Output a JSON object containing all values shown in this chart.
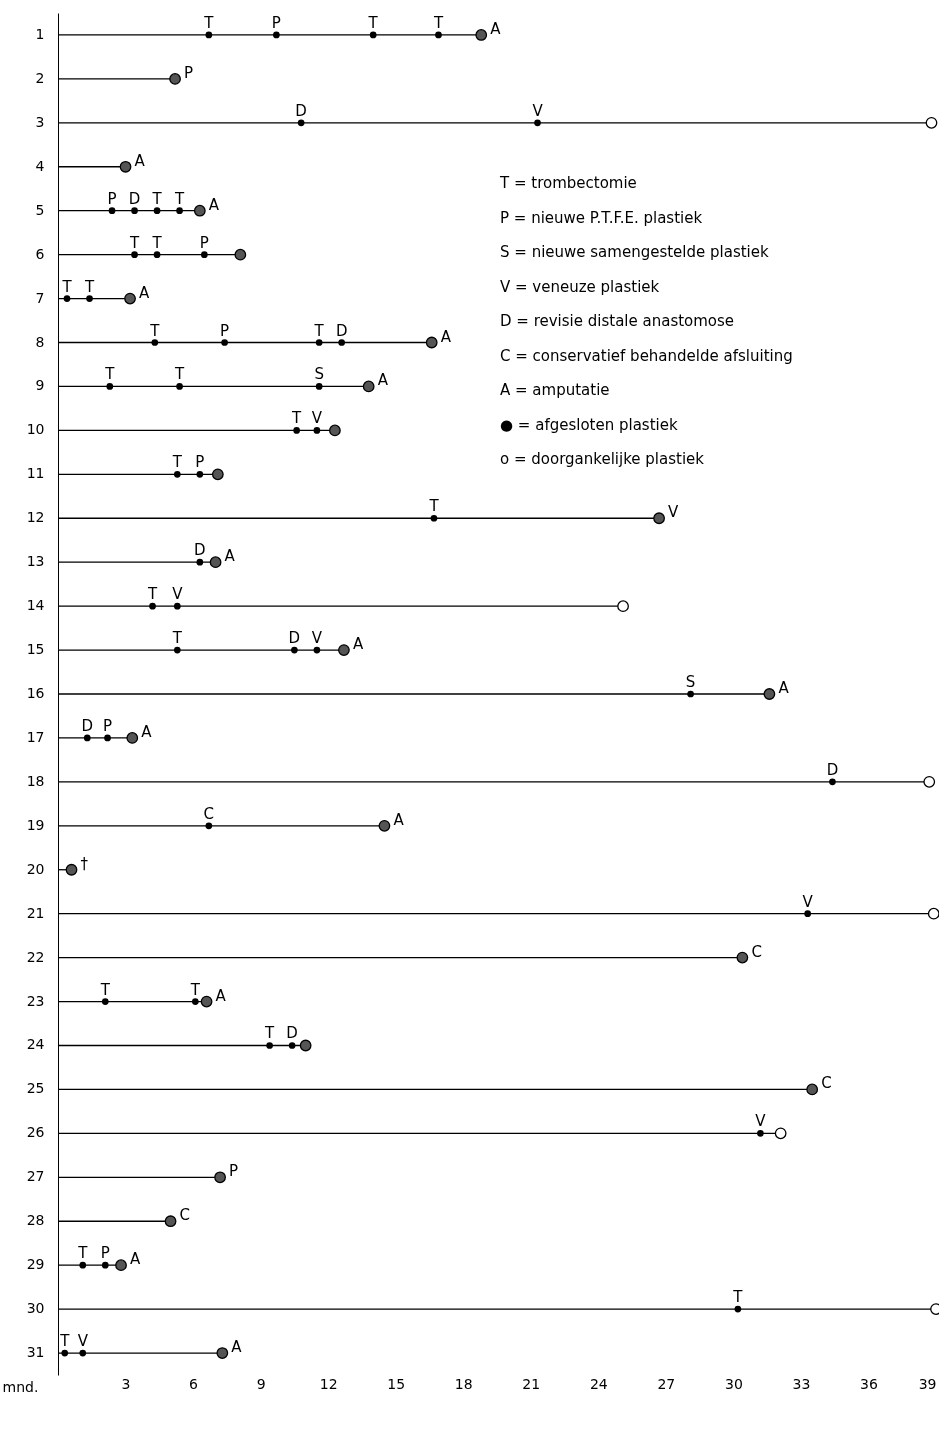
{
  "chart_data": {
    "type": "lollipop",
    "orientation": "horizontal",
    "xlabel": "mnd.",
    "grid": false,
    "marker": "circle",
    "categories": [
      "1",
      "2",
      "3",
      "4",
      "5",
      "6",
      "7",
      "8",
      "9",
      "10",
      "11",
      "12",
      "13",
      "14",
      "15",
      "16",
      "17",
      "18",
      "19",
      "20",
      "21",
      "22",
      "23",
      "24",
      "25",
      "26",
      "27",
      "28",
      "29",
      "30",
      "31"
    ],
    "xlim": [
      0,
      39
    ],
    "xticks": [
      3,
      6,
      9,
      12,
      15,
      18,
      21,
      24,
      27,
      30,
      33,
      36,
      39
    ],
    "annotations": [
      "T = trombectomie",
      "P = nieuwe P.T.F.E. plastiek",
      "S = nieuwe samengestelde plastiek",
      "V = veneuze plastiek",
      "D = revisie distale anastomose",
      "C = conservatief behandelde afsluiting",
      "A = amputatie",
      "● = afgesloten plastiek",
      "o = doorgankelijke plastiek"
    ],
    "series": [
      {
        "type": "lollipop",
        "color": "#000000",
        "values": [
          18.8,
          5.2,
          38.8,
          3.0,
          6.3,
          8.1,
          3.2,
          16.6,
          13.8,
          12.3,
          7.1,
          26.7,
          7.0,
          25.1,
          12.7,
          31.6,
          3.3,
          38.7,
          14.5,
          0.6,
          38.9,
          30.4,
          6.6,
          11.0,
          33.5,
          32.1,
          7.2,
          5.0,
          2.8,
          39.0,
          7.3
        ],
        "colors": [
          "#555555",
          "#555555",
          "#ffffff",
          "#555555",
          "#555555",
          "#555555",
          "#555555",
          "#555555",
          "#555555",
          "#555555",
          "#555555",
          "#555555",
          "#555555",
          "#ffffff",
          "#555555",
          "#555555",
          "#555555",
          "#ffffff",
          "#555555",
          "#555555",
          "#ffffff",
          "#555555",
          "#555555",
          "#555555",
          "#555555",
          "#ffffff",
          "#555555",
          "#555555",
          "#555555",
          "#ffffff",
          "#555555"
        ],
        "value_labels": [
          "A",
          "P",
          null,
          "A",
          "A",
          null,
          "A",
          "A",
          "A",
          null,
          null,
          "V",
          "A",
          null,
          "A",
          "A",
          "A",
          null,
          "A",
          "†",
          null,
          "C",
          "A",
          null,
          "C",
          null,
          "P",
          "C",
          "A",
          null,
          "A"
        ]
      },
      {
        "type": "scatter",
        "color": "#000000",
        "x": [
          "1",
          "1",
          "1",
          "1",
          "3",
          "3",
          "5",
          "5",
          "5",
          "5",
          "6",
          "6",
          "6",
          "7",
          "7",
          "8",
          "8",
          "8",
          "8",
          "9",
          "9",
          "9",
          "10",
          "10",
          "11",
          "11",
          "12",
          "13",
          "14",
          "14",
          "15",
          "15",
          "15",
          "16",
          "17",
          "17",
          "18",
          "19",
          "21",
          "23",
          "23",
          "24",
          "24",
          "26",
          "29",
          "29",
          "30",
          "31",
          "31"
        ],
        "values": [
          6.7,
          9.7,
          14.0,
          16.9,
          10.8,
          21.3,
          2.4,
          3.4,
          4.4,
          5.4,
          3.4,
          4.4,
          6.5,
          0.4,
          1.4,
          4.3,
          7.4,
          11.6,
          12.6,
          2.3,
          5.4,
          11.6,
          10.6,
          11.5,
          5.3,
          6.3,
          16.7,
          6.3,
          4.2,
          5.3,
          5.3,
          10.5,
          11.5,
          28.1,
          1.3,
          2.2,
          34.4,
          6.7,
          33.3,
          2.1,
          6.1,
          9.4,
          10.4,
          31.2,
          1.1,
          2.1,
          30.2,
          0.3,
          1.1
        ],
        "value_labels": [
          "T",
          "P",
          "T",
          "T",
          "D",
          "V",
          "P",
          "D",
          "T",
          "T",
          "T",
          "T",
          "P",
          "T",
          "T",
          "T",
          "P",
          "T",
          "D",
          "T",
          "T",
          "S",
          "T",
          "V",
          "T",
          "P",
          "T",
          "D",
          "T",
          "V",
          "T",
          "D",
          "V",
          "S",
          "D",
          "P",
          "D",
          "C",
          "V",
          "T",
          "T",
          "T",
          "D",
          "V",
          "T",
          "P",
          "T",
          "T",
          "V"
        ]
      }
    ]
  }
}
